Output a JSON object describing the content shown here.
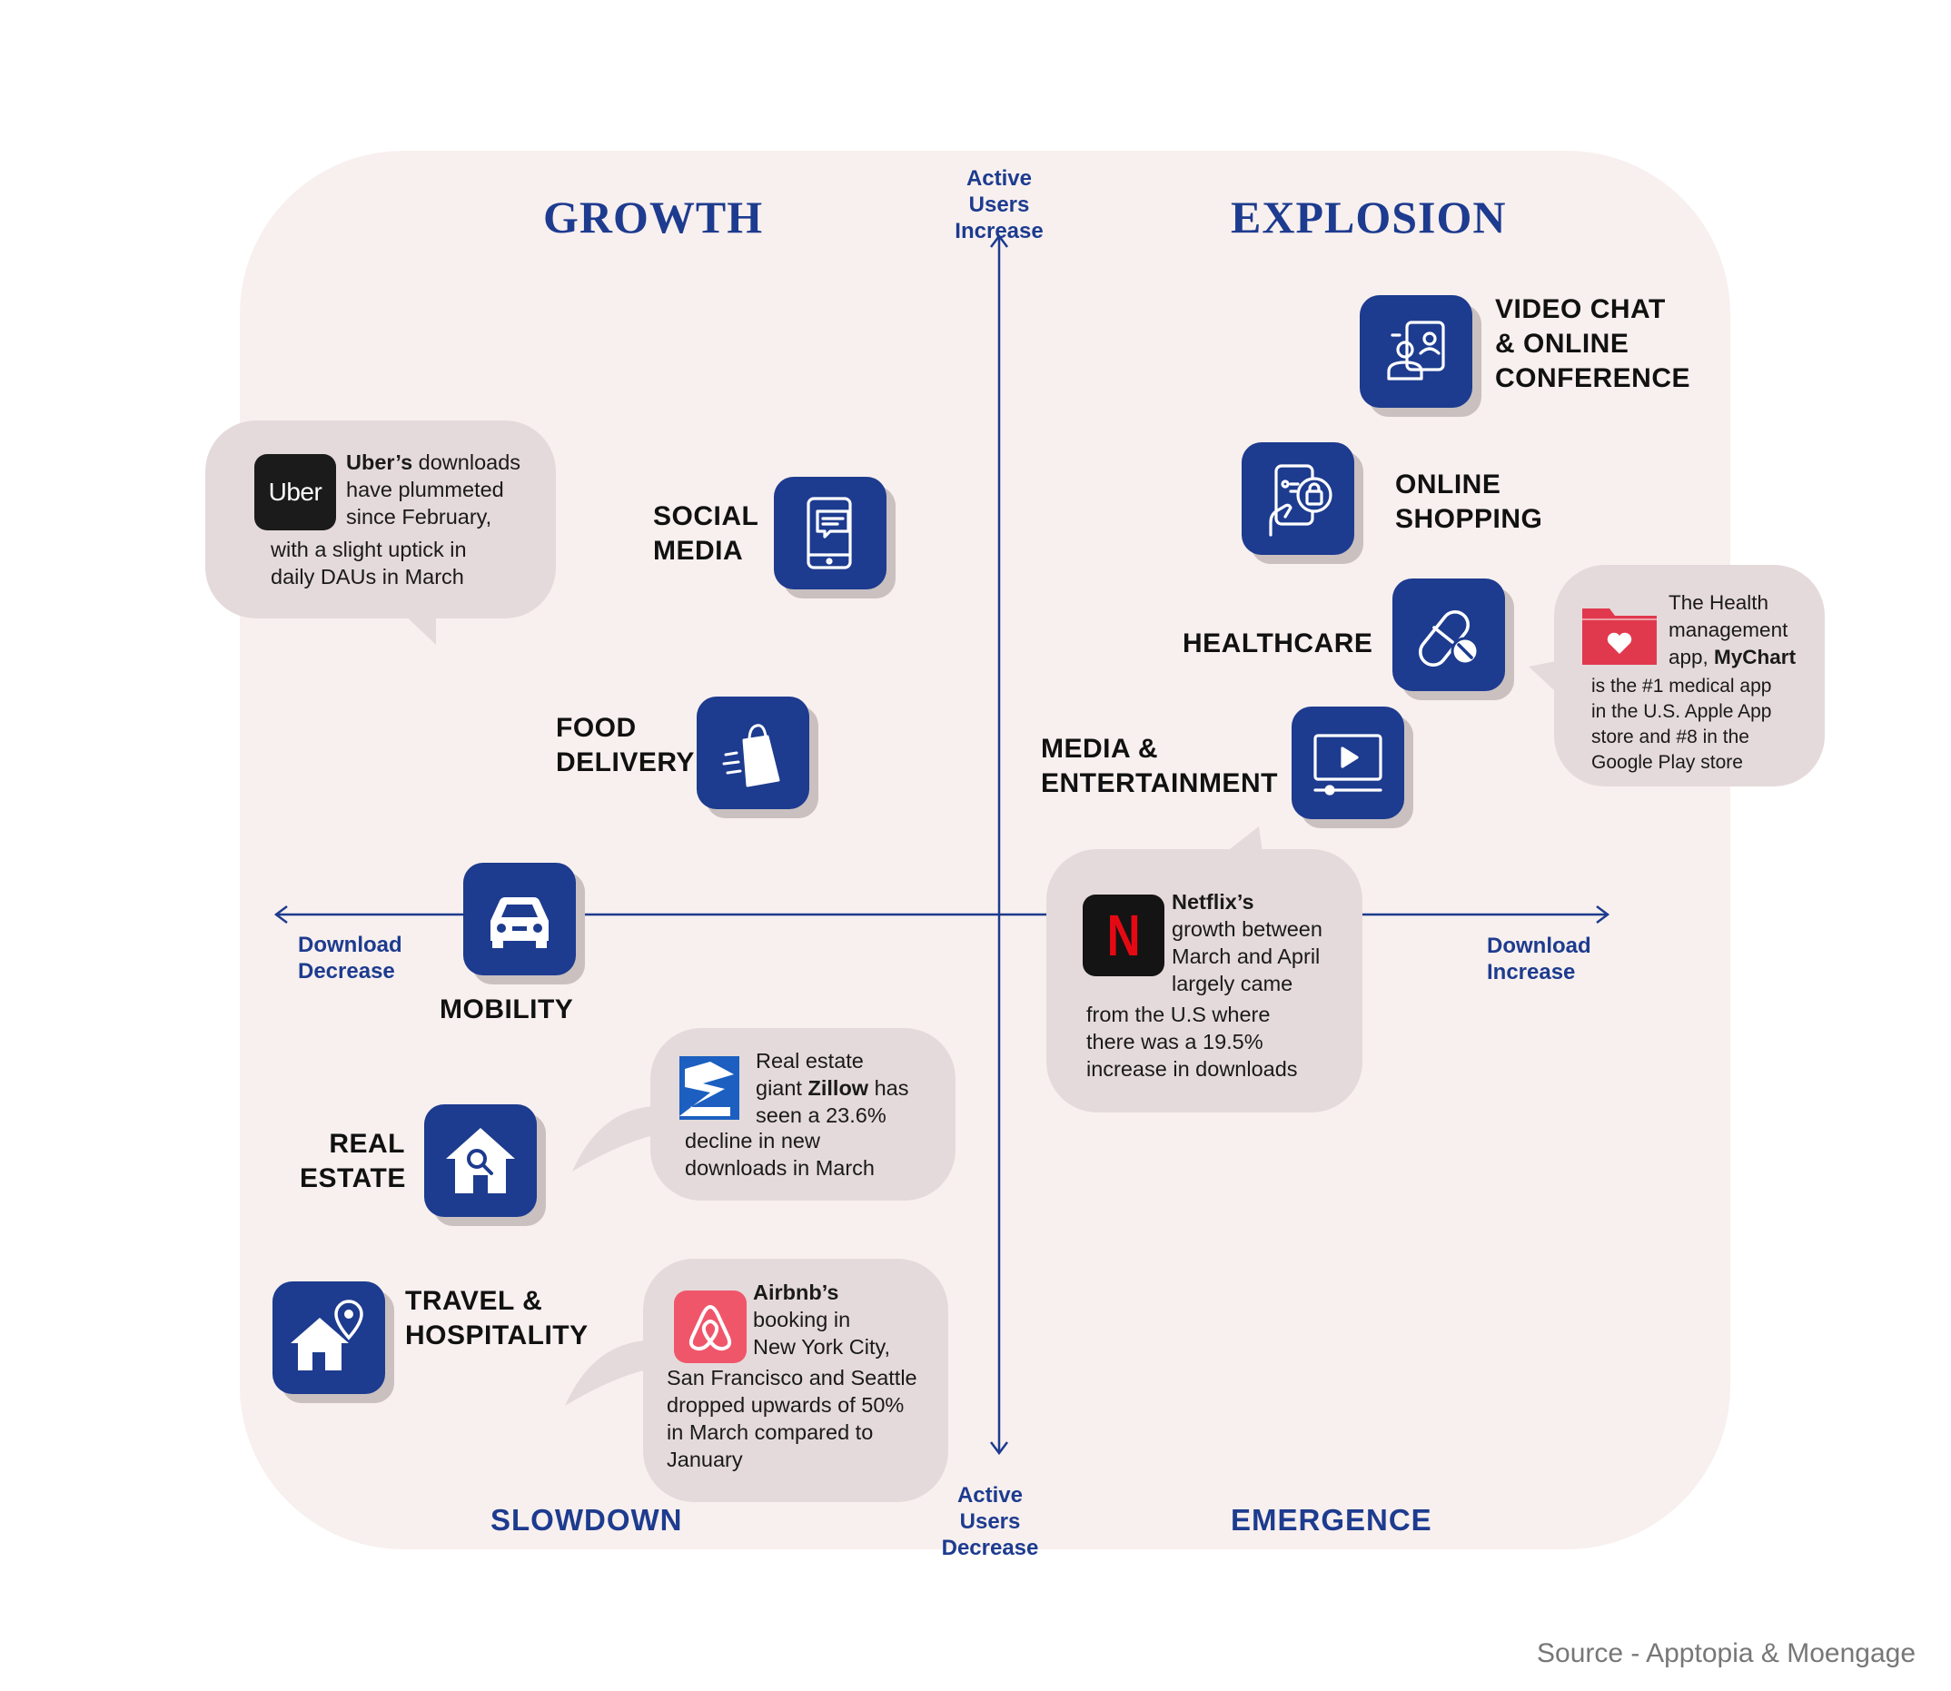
{
  "quadrants": {
    "top_left": "GROWTH",
    "top_right": "EXPLOSION",
    "bottom_left": "SLOWDOWN",
    "bottom_right": "EMERGENCE"
  },
  "axes": {
    "top": [
      "Active Users",
      "Increase"
    ],
    "bottom": [
      "Active Users",
      "Decrease"
    ],
    "left": [
      "Download",
      "Decrease"
    ],
    "right": [
      "Download",
      "Increase"
    ]
  },
  "categories": {
    "video_chat": [
      "VIDEO CHAT",
      "& ONLINE",
      "CONFERENCE"
    ],
    "online_shopping": [
      "ONLINE",
      "SHOPPING"
    ],
    "healthcare": [
      "HEALTHCARE"
    ],
    "media": [
      "MEDIA &",
      "ENTERTAINMENT"
    ],
    "social_media": [
      "SOCIAL",
      "MEDIA"
    ],
    "food_delivery": [
      "FOOD",
      "DELIVERY"
    ],
    "mobility": [
      "MOBILITY"
    ],
    "real_estate": [
      "REAL",
      "ESTATE"
    ],
    "travel": [
      "TRAVEL &",
      "HOSPITALITY"
    ]
  },
  "icons": {
    "video_chat": "video-call-icon",
    "online_shopping": "phone-shopping-icon",
    "healthcare": "pill-icon",
    "media": "play-screen-icon",
    "social_media": "phone-chat-icon",
    "food_delivery": "shopping-bag-icon",
    "mobility": "car-icon",
    "real_estate": "house-search-icon",
    "travel": "house-location-icon"
  },
  "callouts": {
    "uber": {
      "logo": "Uber",
      "bold": "Uber’s",
      "line1_rest": " downloads",
      "lines": [
        "have plummeted",
        "since February,",
        "with a slight uptick in",
        "daily DAUs in March"
      ]
    },
    "mychart": {
      "lines_top": [
        "The Health",
        "management"
      ],
      "app_prefix": "app, ",
      "bold": "MyChart",
      "lines": [
        "is the #1 medical app",
        "in the U.S. Apple App",
        "store and #8 in the",
        "Google Play store"
      ]
    },
    "netflix": {
      "logo": "N",
      "bold": "Netflix’s",
      "lines": [
        "growth between",
        "March and April",
        "largely came",
        "from the U.S where",
        "there was a 19.5%",
        "increase in downloads"
      ]
    },
    "zillow": {
      "line1": "Real estate",
      "prefix": "giant ",
      "bold": "Zillow",
      "suffix": " has",
      "lines": [
        "seen a 23.6%",
        "decline in new",
        "downloads in March"
      ]
    },
    "airbnb": {
      "bold": "Airbnb’s",
      "lines": [
        "booking in",
        "New York City,",
        "San Francisco and Seattle",
        "dropped upwards of 50%",
        "in March compared to",
        "January"
      ]
    }
  },
  "source": "Source - Apptopia & Moengage",
  "colors": {
    "accent": "#1d3b8f",
    "panel": "#f8f0ee",
    "bubble": "#e5dadb",
    "tile_shadow": "#c9c0bf",
    "netflix": "#e50914",
    "airbnb": "#f0566a",
    "mychart": "#e0394d",
    "zillow": "#1c5fc0"
  }
}
